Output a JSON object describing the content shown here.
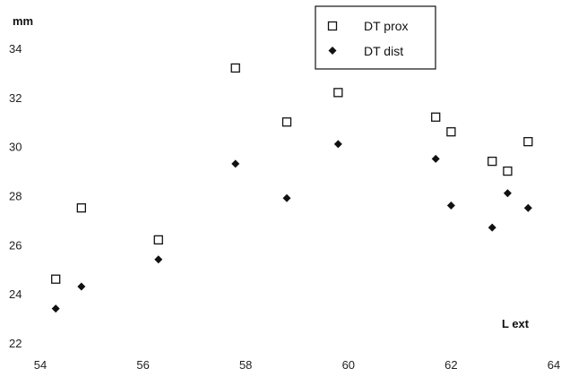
{
  "chart_data": {
    "type": "scatter",
    "title": "",
    "xlabel": "L ext",
    "ylabel": "mm",
    "xlim": [
      54,
      64
    ],
    "ylim": [
      22,
      34.5
    ],
    "xticks": [
      "54",
      "56",
      "58",
      "60",
      "62",
      "64"
    ],
    "yticks": [
      "22",
      "24",
      "26",
      "28",
      "30",
      "32",
      "34"
    ],
    "grid": false,
    "legend_position": "top-right",
    "series": [
      {
        "name": "DT prox",
        "marker": "open-square",
        "color": "#111111",
        "points": [
          {
            "x": 54.3,
            "y": 24.6
          },
          {
            "x": 54.8,
            "y": 27.5
          },
          {
            "x": 56.3,
            "y": 26.2
          },
          {
            "x": 57.8,
            "y": 33.2
          },
          {
            "x": 58.8,
            "y": 31.0
          },
          {
            "x": 59.8,
            "y": 32.2
          },
          {
            "x": 61.7,
            "y": 31.2
          },
          {
            "x": 62.0,
            "y": 30.6
          },
          {
            "x": 62.8,
            "y": 29.4
          },
          {
            "x": 63.1,
            "y": 29.0
          },
          {
            "x": 63.5,
            "y": 30.2
          }
        ]
      },
      {
        "name": "DT dist",
        "marker": "filled-diamond",
        "color": "#111111",
        "points": [
          {
            "x": 54.3,
            "y": 23.4
          },
          {
            "x": 54.8,
            "y": 24.3
          },
          {
            "x": 56.3,
            "y": 25.4
          },
          {
            "x": 57.8,
            "y": 29.3
          },
          {
            "x": 58.8,
            "y": 27.9
          },
          {
            "x": 59.8,
            "y": 30.1
          },
          {
            "x": 61.7,
            "y": 29.5
          },
          {
            "x": 62.0,
            "y": 27.6
          },
          {
            "x": 62.8,
            "y": 26.7
          },
          {
            "x": 63.1,
            "y": 28.1
          },
          {
            "x": 63.5,
            "y": 27.5
          }
        ]
      }
    ]
  }
}
